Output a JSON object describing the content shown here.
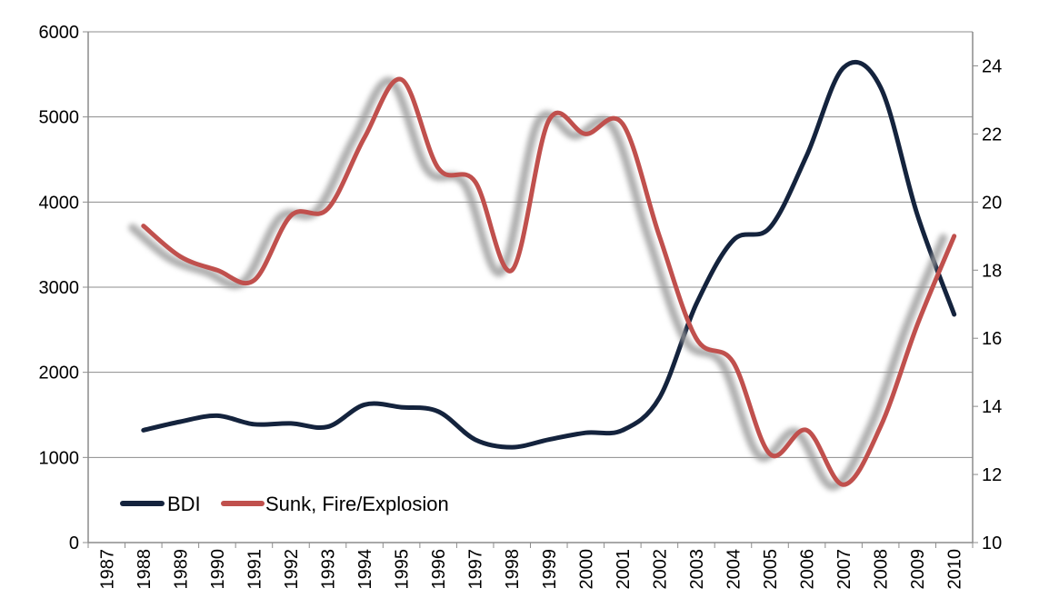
{
  "chart_data": {
    "type": "line",
    "title": "",
    "xlabel": "",
    "ylabel": "",
    "y2label": "",
    "categories": [
      "1987",
      "1988",
      "1989",
      "1990",
      "1991",
      "1992",
      "1993",
      "1994",
      "1995",
      "1996",
      "1997",
      "1998",
      "1999",
      "2000",
      "2001",
      "2002",
      "2003",
      "2004",
      "2005",
      "2006",
      "2007",
      "2008",
      "2009",
      "2010"
    ],
    "ylim": [
      0,
      6000
    ],
    "yticks": [
      "0",
      "1000",
      "2000",
      "3000",
      "4000",
      "5000",
      "6000"
    ],
    "y2lim": [
      10,
      25
    ],
    "y2ticks": [
      "10",
      "12",
      "14",
      "16",
      "18",
      "20",
      "22",
      "24"
    ],
    "grid": true,
    "legend_position": "bottom-left",
    "series": [
      {
        "name": "BDI",
        "axis": "left",
        "color": "#14233d",
        "values": [
          null,
          1320,
          1420,
          1490,
          1390,
          1400,
          1360,
          1620,
          1590,
          1540,
          1210,
          1120,
          1210,
          1290,
          1320,
          1700,
          2800,
          3550,
          3700,
          4550,
          5580,
          5350,
          3850,
          2680
        ]
      },
      {
        "name": "Sunk, Fire/Explosion",
        "axis": "right",
        "color": "#c0504d",
        "values": [
          null,
          19.3,
          18.4,
          18.0,
          17.7,
          19.6,
          19.8,
          21.9,
          23.6,
          21.0,
          20.6,
          18.0,
          22.4,
          22.0,
          22.3,
          19.0,
          16.0,
          15.3,
          12.6,
          13.3,
          11.7,
          13.4,
          16.4,
          19.0
        ]
      }
    ]
  }
}
